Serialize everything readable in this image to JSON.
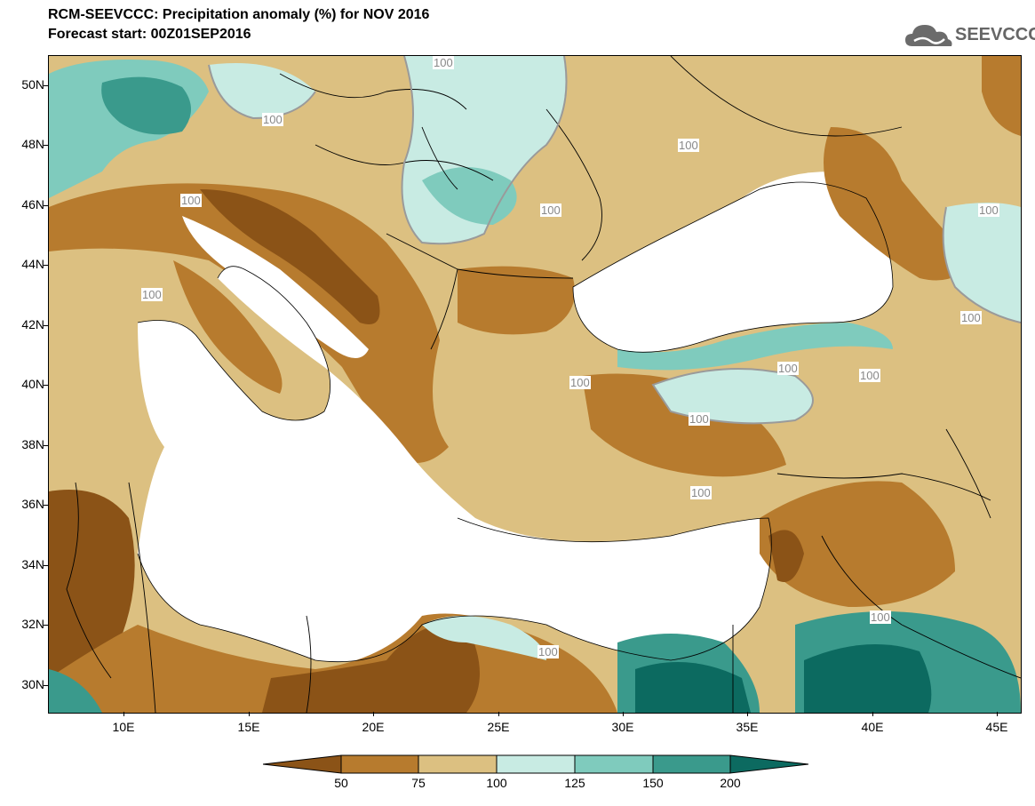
{
  "header": {
    "title": "RCM-SEEVCCC: Precipitation anomaly (%) for NOV 2016",
    "subtitle": "Forecast start: 00Z01SEP2016"
  },
  "logo": {
    "text": "SEEVCCC",
    "icon": "cloud-icon"
  },
  "map": {
    "lat_labels": [
      "50N",
      "48N",
      "46N",
      "44N",
      "42N",
      "40N",
      "38N",
      "36N",
      "34N",
      "32N",
      "30N"
    ],
    "lon_labels": [
      "10E",
      "15E",
      "20E",
      "25E",
      "30E",
      "35E",
      "40E",
      "45E"
    ],
    "contour_labels": [
      "100",
      "100",
      "100",
      "100",
      "100",
      "100",
      "100",
      "100",
      "100",
      "100",
      "100",
      "100",
      "100",
      "100",
      "100"
    ]
  },
  "colorbar": {
    "labels": [
      "50",
      "75",
      "100",
      "125",
      "150",
      "200"
    ],
    "colors": [
      "#8b5317",
      "#b77b2e",
      "#dcc081",
      "#c8ebe3",
      "#7fcbbd",
      "#3a9a8c",
      "#0c6a60"
    ]
  }
}
